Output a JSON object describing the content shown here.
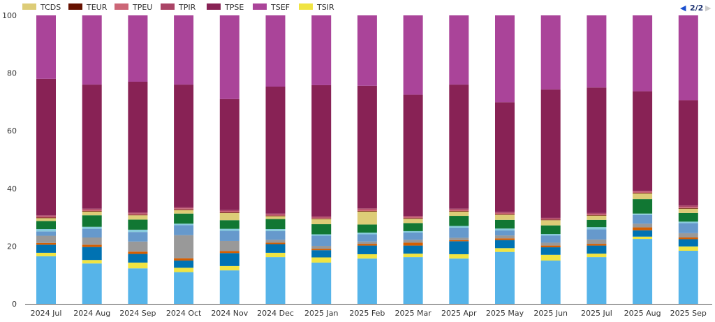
{
  "legend_pager": {
    "text": "2/2",
    "prev": "◀",
    "next": "▶"
  },
  "chart_data": {
    "type": "bar",
    "stacked": true,
    "normalized": true,
    "title": "",
    "xlabel": "",
    "ylabel": "",
    "ylim": [
      0,
      100
    ],
    "yticks": [
      "0",
      "20",
      "40",
      "60",
      "80",
      "100"
    ],
    "legend_placement": "top-left",
    "categories": [
      "2024 Jul",
      "2024 Aug",
      "2024 Sep",
      "2024 Oct",
      "2024 Nov",
      "2024 Dec",
      "2025 Jan",
      "2025 Feb",
      "2025 Mar",
      "2025 Apr",
      "2025 May",
      "2025 Jun",
      "2025 Jul",
      "2025 Aug",
      "2025 Sep"
    ],
    "series": [
      {
        "name": "",
        "in_legend": false,
        "color": "#56b4e9",
        "values": [
          16.5,
          14,
          12.3,
          11,
          11.6,
          16.2,
          14.3,
          15.7,
          16.2,
          15.7,
          18,
          15,
          16.2,
          22.5,
          18.4
        ]
      },
      {
        "name": "TSIR",
        "in_legend": true,
        "color": "#f0e442",
        "values": [
          1.2,
          1.2,
          2,
          1.5,
          1.5,
          1.5,
          1.8,
          1.5,
          1.2,
          1.5,
          1.3,
          2,
          1.2,
          0.8,
          1.5
        ]
      },
      {
        "name": "",
        "in_legend": false,
        "color": "#0072b2",
        "values": [
          2.8,
          4.5,
          3,
          2.5,
          4.5,
          3,
          2.5,
          3,
          2.8,
          4.5,
          2.8,
          2.6,
          2.8,
          2.2,
          2.5
        ]
      },
      {
        "name": "",
        "in_legend": false,
        "color": "#d55e00",
        "values": [
          0.6,
          0.8,
          0.8,
          0.8,
          0.7,
          0.5,
          0.5,
          0.6,
          1,
          0.4,
          0.6,
          0.6,
          0.6,
          1,
          0.6
        ]
      },
      {
        "name": "",
        "in_legend": false,
        "color": "#999999",
        "values": [
          2.5,
          2.5,
          3.5,
          8,
          3.5,
          1,
          1,
          0.8,
          1,
          0.8,
          1,
          1,
          1.5,
          1.3,
          1.5
        ]
      },
      {
        "name": "",
        "in_legend": false,
        "color": "#6699cc",
        "values": [
          1.5,
          3,
          3.3,
          3.5,
          3.5,
          3,
          3.5,
          2.5,
          2.5,
          3.5,
          1.8,
          2.5,
          3.5,
          3,
          3.5
        ]
      },
      {
        "name": "",
        "in_legend": false,
        "color": "#88ccdd",
        "values": [
          0.8,
          0.7,
          0.8,
          0.5,
          0.7,
          0.7,
          0.5,
          0.6,
          0.5,
          0.6,
          0.6,
          0.5,
          0.8,
          0.5,
          0.5
        ]
      },
      {
        "name": "",
        "in_legend": false,
        "color": "#117733",
        "values": [
          2.8,
          4,
          3.5,
          3.5,
          3,
          3.5,
          3.5,
          2.8,
          2.8,
          3.5,
          3,
          3,
          2.5,
          5,
          3
        ]
      },
      {
        "name": "TCDS",
        "in_legend": true,
        "color": "#ddcc77",
        "values": [
          1,
          1.3,
          1.5,
          1.2,
          2.5,
          1,
          1.8,
          4.5,
          1.5,
          1.5,
          1.8,
          1.8,
          1.5,
          2,
          1.5
        ]
      },
      {
        "name": "TEUR",
        "in_legend": true,
        "color": "#661100",
        "values": [
          0.2,
          0.2,
          0.2,
          0.2,
          0.2,
          0.2,
          0.2,
          0.2,
          0.2,
          0.2,
          0.2,
          0.2,
          0.2,
          0.2,
          0.2
        ]
      },
      {
        "name": "TPEU",
        "in_legend": true,
        "color": "#cc6677",
        "values": [
          0.4,
          0.4,
          0.4,
          0.4,
          0.4,
          0.3,
          0.3,
          0.5,
          0.4,
          0.4,
          0.4,
          0.3,
          0.3,
          0.4,
          0.4
        ]
      },
      {
        "name": "TPIR",
        "in_legend": true,
        "color": "#aa4466",
        "values": [
          0.4,
          0.4,
          0.4,
          0.4,
          0.4,
          0.4,
          0.4,
          0.4,
          0.4,
          0.4,
          0.4,
          0.3,
          0.4,
          0.3,
          0.5
        ]
      },
      {
        "name": "TPSE",
        "in_legend": true,
        "color": "#882255",
        "values": [
          47.3,
          43,
          45.3,
          42.5,
          38.5,
          44,
          45.5,
          42.5,
          42,
          43,
          38,
          44.5,
          43.5,
          34.5,
          36.5
        ]
      },
      {
        "name": "TSEF",
        "in_legend": true,
        "color": "#aa4499",
        "values": [
          22,
          24,
          23,
          24,
          29,
          24.7,
          24.2,
          24.4,
          27.5,
          24,
          30.1,
          25.7,
          25,
          26.3,
          29.4
        ]
      }
    ],
    "legend_order": [
      "TCDS",
      "TEUR",
      "TPEU",
      "TPIR",
      "TPSE",
      "TSEF",
      "TSIR"
    ]
  }
}
